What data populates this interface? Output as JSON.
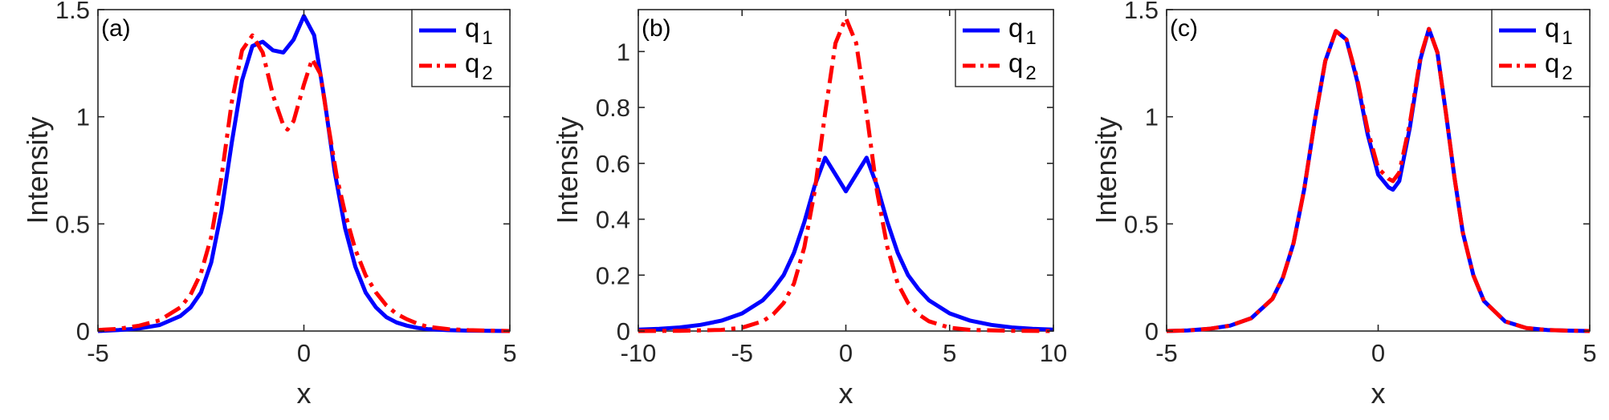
{
  "colors": {
    "q1": "#0000ff",
    "q2": "#ff0000",
    "axis": "#262626"
  },
  "chart_data": [
    {
      "type": "line",
      "panel_label": "(a)",
      "xlabel": "x",
      "ylabel": "Intensity",
      "xlim": [
        -5,
        5
      ],
      "ylim": [
        0,
        1.5
      ],
      "xticks": [
        -5,
        0,
        5
      ],
      "yticks": [
        0,
        0.5,
        1,
        1.5
      ],
      "xtick_labels": [
        "-5",
        "0",
        "5"
      ],
      "ytick_labels": [
        "0",
        "0.5",
        "1",
        "1.5"
      ],
      "legend": {
        "position": "top-right",
        "entries": [
          {
            "base": "q",
            "sub": "1"
          },
          {
            "base": "q",
            "sub": "2"
          }
        ]
      },
      "series": [
        {
          "name": "q1",
          "style": "solid",
          "color": "#0000ff",
          "x": [
            -5,
            -4.5,
            -4,
            -3.5,
            -3,
            -2.75,
            -2.5,
            -2.25,
            -2,
            -1.75,
            -1.5,
            -1.25,
            -1,
            -0.75,
            -0.5,
            -0.25,
            0,
            0.25,
            0.5,
            0.75,
            1,
            1.25,
            1.5,
            1.75,
            2,
            2.25,
            2.5,
            2.75,
            3,
            3.5,
            4,
            4.5,
            5
          ],
          "y": [
            0.0,
            0.005,
            0.012,
            0.028,
            0.07,
            0.11,
            0.18,
            0.32,
            0.56,
            0.88,
            1.17,
            1.33,
            1.35,
            1.31,
            1.3,
            1.36,
            1.47,
            1.38,
            1.08,
            0.74,
            0.48,
            0.3,
            0.18,
            0.11,
            0.065,
            0.04,
            0.025,
            0.015,
            0.009,
            0.004,
            0.002,
            0.001,
            0.0
          ]
        },
        {
          "name": "q2",
          "style": "dashdot",
          "color": "#ff0000",
          "x": [
            -5,
            -4.5,
            -4,
            -3.5,
            -3,
            -2.75,
            -2.5,
            -2.25,
            -2,
            -1.75,
            -1.5,
            -1.25,
            -1,
            -0.75,
            -0.5,
            -0.4,
            -0.25,
            0,
            0.2,
            0.4,
            0.6,
            0.8,
            1,
            1.25,
            1.5,
            1.75,
            2,
            2.25,
            2.5,
            2.75,
            3,
            3.5,
            4,
            4.5,
            5
          ],
          "y": [
            0.005,
            0.01,
            0.025,
            0.05,
            0.11,
            0.17,
            0.27,
            0.44,
            0.72,
            1.07,
            1.31,
            1.38,
            1.3,
            1.1,
            0.96,
            0.94,
            0.98,
            1.15,
            1.27,
            1.2,
            0.95,
            0.72,
            0.55,
            0.38,
            0.26,
            0.18,
            0.12,
            0.08,
            0.055,
            0.035,
            0.02,
            0.009,
            0.004,
            0.002,
            0.0
          ]
        }
      ]
    },
    {
      "type": "line",
      "panel_label": "(b)",
      "xlabel": "x",
      "ylabel": "Intensity",
      "xlim": [
        -10,
        10
      ],
      "ylim": [
        0,
        1.15
      ],
      "xticks": [
        -10,
        -5,
        0,
        5,
        10
      ],
      "yticks": [
        0,
        0.2,
        0.4,
        0.6,
        0.8,
        1
      ],
      "xtick_labels": [
        "-10",
        "-5",
        "0",
        "5",
        "10"
      ],
      "ytick_labels": [
        "0",
        "0.2",
        "0.4",
        "0.6",
        "0.8",
        "1"
      ],
      "legend": {
        "position": "top-right",
        "entries": [
          {
            "base": "q",
            "sub": "1"
          },
          {
            "base": "q",
            "sub": "2"
          }
        ]
      },
      "series": [
        {
          "name": "q1",
          "style": "solid",
          "color": "#0000ff",
          "x": [
            -10,
            -9,
            -8,
            -7,
            -6,
            -5,
            -4,
            -3.5,
            -3,
            -2.5,
            -2,
            -1.5,
            -1,
            -0.5,
            0,
            0.5,
            1,
            1.5,
            2,
            2.5,
            3,
            3.5,
            4,
            5,
            6,
            7,
            8,
            9,
            10
          ],
          "y": [
            0.005,
            0.008,
            0.013,
            0.022,
            0.037,
            0.063,
            0.11,
            0.15,
            0.2,
            0.28,
            0.39,
            0.52,
            0.62,
            0.56,
            0.5,
            0.56,
            0.62,
            0.52,
            0.39,
            0.28,
            0.2,
            0.15,
            0.11,
            0.063,
            0.037,
            0.022,
            0.013,
            0.008,
            0.005
          ]
        },
        {
          "name": "q2",
          "style": "dashdot",
          "color": "#ff0000",
          "x": [
            -10,
            -8,
            -6,
            -5,
            -4,
            -3.5,
            -3,
            -2.5,
            -2,
            -1.5,
            -1,
            -0.5,
            0,
            0.5,
            1,
            1.5,
            2,
            2.5,
            3,
            3.5,
            4,
            5,
            6,
            8,
            10
          ],
          "y": [
            0.0,
            0.001,
            0.004,
            0.012,
            0.035,
            0.06,
            0.1,
            0.17,
            0.3,
            0.5,
            0.78,
            1.03,
            1.12,
            1.03,
            0.78,
            0.5,
            0.3,
            0.17,
            0.1,
            0.06,
            0.035,
            0.012,
            0.004,
            0.001,
            0.0
          ]
        }
      ]
    },
    {
      "type": "line",
      "panel_label": "(c)",
      "xlabel": "x",
      "ylabel": "Intensity",
      "xlim": [
        -5,
        5
      ],
      "ylim": [
        0,
        1.5
      ],
      "xticks": [
        -5,
        0,
        5
      ],
      "yticks": [
        0,
        0.5,
        1,
        1.5
      ],
      "xtick_labels": [
        "-5",
        "0",
        "5"
      ],
      "ytick_labels": [
        "0",
        "0.5",
        "1",
        "1.5"
      ],
      "legend": {
        "position": "top-right",
        "entries": [
          {
            "base": "q",
            "sub": "1"
          },
          {
            "base": "q",
            "sub": "2"
          }
        ]
      },
      "series": [
        {
          "name": "q1",
          "style": "solid",
          "color": "#0000ff",
          "x": [
            -5,
            -4.5,
            -4,
            -3.5,
            -3,
            -2.5,
            -2.25,
            -2,
            -1.75,
            -1.5,
            -1.25,
            -1,
            -0.75,
            -0.5,
            -0.25,
            0,
            0.25,
            0.35,
            0.5,
            0.75,
            1,
            1.2,
            1.4,
            1.6,
            1.8,
            2,
            2.25,
            2.5,
            3,
            3.5,
            4,
            4.5,
            5
          ],
          "y": [
            0.0,
            0.003,
            0.01,
            0.025,
            0.06,
            0.15,
            0.25,
            0.41,
            0.66,
            0.98,
            1.26,
            1.4,
            1.36,
            1.17,
            0.92,
            0.73,
            0.67,
            0.66,
            0.7,
            0.95,
            1.27,
            1.41,
            1.3,
            1.02,
            0.72,
            0.46,
            0.26,
            0.14,
            0.045,
            0.014,
            0.005,
            0.002,
            0.0
          ]
        },
        {
          "name": "q2",
          "style": "dashdot",
          "color": "#ff0000",
          "x": [
            -5,
            -4.5,
            -4,
            -3.5,
            -3,
            -2.5,
            -2.25,
            -2,
            -1.75,
            -1.5,
            -1.25,
            -1,
            -0.75,
            -0.5,
            -0.25,
            0,
            0.25,
            0.35,
            0.5,
            0.75,
            1,
            1.2,
            1.4,
            1.6,
            1.8,
            2,
            2.25,
            2.5,
            3,
            3.5,
            4,
            4.5,
            5
          ],
          "y": [
            0.0,
            0.003,
            0.01,
            0.025,
            0.06,
            0.15,
            0.25,
            0.41,
            0.66,
            0.98,
            1.26,
            1.4,
            1.36,
            1.18,
            0.94,
            0.76,
            0.71,
            0.7,
            0.74,
            0.97,
            1.28,
            1.41,
            1.3,
            1.02,
            0.72,
            0.46,
            0.26,
            0.14,
            0.045,
            0.014,
            0.005,
            0.002,
            0.0
          ]
        }
      ]
    }
  ]
}
